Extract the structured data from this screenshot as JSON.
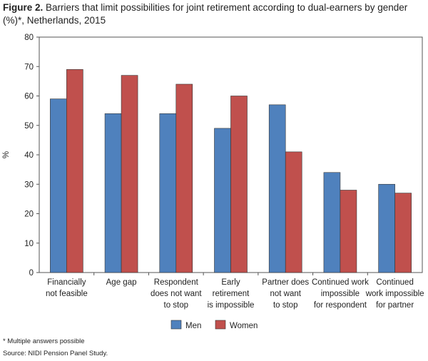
{
  "chart_data": {
    "type": "bar",
    "figure_label": "Figure 2.",
    "title": "Barriers that limit possibilities for joint retirement according to dual-earners by gender (%)*, Netherlands, 2015",
    "y_label": "%",
    "categories": [
      [
        "Financially",
        "not feasible"
      ],
      [
        "Age gap"
      ],
      [
        "Respondent",
        "does not want",
        "to stop"
      ],
      [
        "Early",
        "retirement",
        "is impossible"
      ],
      [
        "Partner does",
        "not want",
        "to stop"
      ],
      [
        "Continued work",
        "impossible",
        "for respondent"
      ],
      [
        "Continued",
        "work impossible",
        "for partner"
      ]
    ],
    "series": [
      {
        "name": "Men",
        "color": "#4f81bd",
        "values": [
          59,
          54,
          54,
          49,
          57,
          34,
          30
        ]
      },
      {
        "name": "Women",
        "color": "#c0504d",
        "values": [
          69,
          67,
          64,
          60,
          41,
          28,
          27
        ]
      }
    ],
    "ylim": [
      0,
      80
    ],
    "yticks": [
      0,
      10,
      20,
      30,
      40,
      50,
      60,
      70,
      80
    ],
    "grid": false,
    "legend": "bottom",
    "footnote": "* Multiple answers possible",
    "source": "Source: NIDI Pension Panel Study."
  }
}
